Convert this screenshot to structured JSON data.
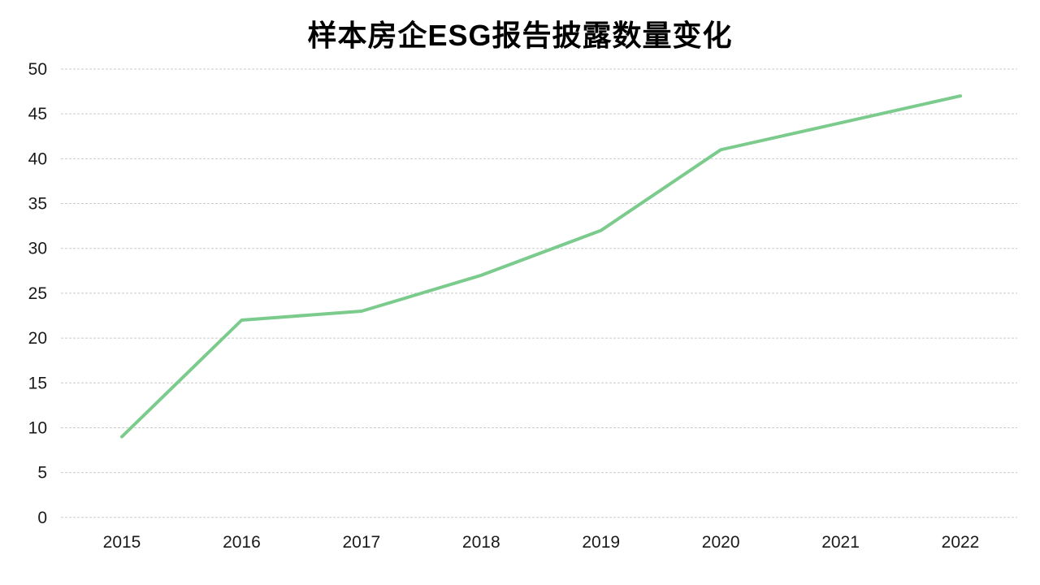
{
  "chart_data": {
    "type": "line",
    "title": "样本房企ESG报告披露数量变化",
    "x": [
      "2015",
      "2016",
      "2017",
      "2018",
      "2019",
      "2020",
      "2021",
      "2022"
    ],
    "values": [
      9,
      22,
      23,
      27,
      32,
      41,
      44,
      47
    ],
    "xlabel": "",
    "ylabel": "",
    "ylim": [
      0,
      50
    ],
    "ytick_step": 5,
    "yticks": [
      0,
      5,
      10,
      15,
      20,
      25,
      30,
      35,
      40,
      45,
      50
    ],
    "grid": "horizontal-dashed",
    "legend": "none",
    "line_color": "#7bcb8d",
    "line_width": 4,
    "grid_color": "#cbcbcb",
    "tick_text_color": "#1a1a1a",
    "title_color": "#000000",
    "background": "#ffffff"
  }
}
